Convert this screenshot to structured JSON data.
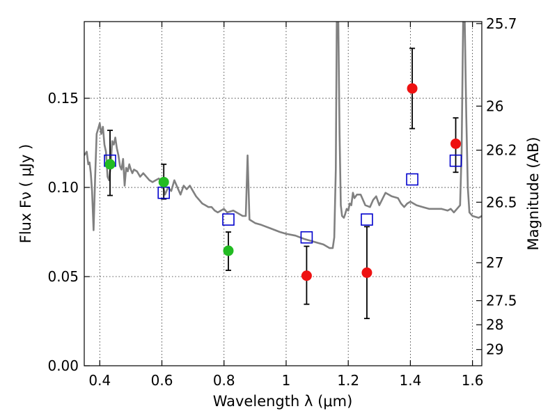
{
  "chart_data": {
    "type": "scatter",
    "title": "",
    "xlabel": "Wavelength  λ (μm)",
    "ylabel": "Flux  Fν ( μJy )",
    "ylabel_right": "Magnitude (AB)",
    "xlim": [
      0.35,
      1.63
    ],
    "ylim": [
      0.0,
      0.193
    ],
    "x_ticks": [
      {
        "value": 0.4,
        "label": "0.4"
      },
      {
        "value": 0.6,
        "label": "0.6"
      },
      {
        "value": 0.8,
        "label": "0.8"
      },
      {
        "value": 1.0,
        "label": "1"
      },
      {
        "value": 1.2,
        "label": "1.2"
      },
      {
        "value": 1.4,
        "label": "1.4"
      },
      {
        "value": 1.6,
        "label": "1.6"
      }
    ],
    "y_ticks": [
      {
        "value": 0.0,
        "label": "0.00"
      },
      {
        "value": 0.05,
        "label": "0.05"
      },
      {
        "value": 0.1,
        "label": "0.10"
      },
      {
        "value": 0.15,
        "label": "0.15"
      }
    ],
    "right_ticks": [
      {
        "flux": 0.1919,
        "label": "25.7"
      },
      {
        "flux": 0.1456,
        "label": "26"
      },
      {
        "flux": 0.1209,
        "label": "26.2"
      },
      {
        "flux": 0.0917,
        "label": "26.5"
      },
      {
        "flux": 0.0578,
        "label": "27"
      },
      {
        "flux": 0.0365,
        "label": "27.5"
      },
      {
        "flux": 0.023,
        "label": "28"
      },
      {
        "flux": 0.0091,
        "label": "29"
      }
    ],
    "grid": true,
    "colors": {
      "sed": "#808080",
      "green": "#22bb22",
      "red": "#ee1111",
      "model": "#0000cc",
      "errorbar": "#000000"
    },
    "sed_curve": [
      [
        0.35,
        0.118
      ],
      [
        0.358,
        0.12
      ],
      [
        0.363,
        0.113
      ],
      [
        0.367,
        0.114
      ],
      [
        0.371,
        0.108
      ],
      [
        0.375,
        0.098
      ],
      [
        0.38,
        0.076
      ],
      [
        0.385,
        0.105
      ],
      [
        0.39,
        0.13
      ],
      [
        0.395,
        0.133
      ],
      [
        0.4,
        0.136
      ],
      [
        0.405,
        0.13
      ],
      [
        0.41,
        0.134
      ],
      [
        0.415,
        0.124
      ],
      [
        0.42,
        0.12
      ],
      [
        0.425,
        0.106
      ],
      [
        0.43,
        0.104
      ],
      [
        0.435,
        0.112
      ],
      [
        0.44,
        0.126
      ],
      [
        0.445,
        0.124
      ],
      [
        0.45,
        0.128
      ],
      [
        0.455,
        0.122
      ],
      [
        0.46,
        0.118
      ],
      [
        0.465,
        0.112
      ],
      [
        0.47,
        0.11
      ],
      [
        0.475,
        0.116
      ],
      [
        0.48,
        0.101
      ],
      [
        0.485,
        0.111
      ],
      [
        0.49,
        0.109
      ],
      [
        0.495,
        0.113
      ],
      [
        0.5,
        0.11
      ],
      [
        0.505,
        0.108
      ],
      [
        0.51,
        0.11
      ],
      [
        0.52,
        0.109
      ],
      [
        0.53,
        0.106
      ],
      [
        0.54,
        0.108
      ],
      [
        0.55,
        0.106
      ],
      [
        0.56,
        0.104
      ],
      [
        0.57,
        0.103
      ],
      [
        0.58,
        0.104
      ],
      [
        0.59,
        0.105
      ],
      [
        0.6,
        0.103
      ],
      [
        0.61,
        0.096
      ],
      [
        0.62,
        0.1
      ],
      [
        0.63,
        0.098
      ],
      [
        0.64,
        0.104
      ],
      [
        0.65,
        0.1
      ],
      [
        0.66,
        0.096
      ],
      [
        0.67,
        0.101
      ],
      [
        0.68,
        0.099
      ],
      [
        0.69,
        0.101
      ],
      [
        0.7,
        0.098
      ],
      [
        0.71,
        0.095
      ],
      [
        0.72,
        0.093
      ],
      [
        0.73,
        0.091
      ],
      [
        0.74,
        0.09
      ],
      [
        0.75,
        0.089
      ],
      [
        0.76,
        0.089
      ],
      [
        0.77,
        0.087
      ],
      [
        0.78,
        0.086
      ],
      [
        0.79,
        0.087
      ],
      [
        0.8,
        0.088
      ],
      [
        0.81,
        0.086
      ],
      [
        0.83,
        0.087
      ],
      [
        0.85,
        0.085
      ],
      [
        0.86,
        0.084
      ],
      [
        0.87,
        0.084
      ],
      [
        0.876,
        0.118
      ],
      [
        0.882,
        0.082
      ],
      [
        0.9,
        0.08
      ],
      [
        0.92,
        0.079
      ],
      [
        0.95,
        0.077
      ],
      [
        0.98,
        0.075
      ],
      [
        1.0,
        0.074
      ],
      [
        1.03,
        0.073
      ],
      [
        1.06,
        0.071
      ],
      [
        1.08,
        0.07
      ],
      [
        1.1,
        0.069
      ],
      [
        1.12,
        0.068
      ],
      [
        1.14,
        0.066
      ],
      [
        1.15,
        0.066
      ],
      [
        1.155,
        0.072
      ],
      [
        1.16,
        0.11
      ],
      [
        1.163,
        0.193
      ],
      [
        1.168,
        0.193
      ],
      [
        1.172,
        0.13
      ],
      [
        1.176,
        0.09
      ],
      [
        1.18,
        0.084
      ],
      [
        1.186,
        0.083
      ],
      [
        1.19,
        0.085
      ],
      [
        1.195,
        0.088
      ],
      [
        1.2,
        0.087
      ],
      [
        1.205,
        0.091
      ],
      [
        1.21,
        0.09
      ],
      [
        1.215,
        0.097
      ],
      [
        1.22,
        0.094
      ],
      [
        1.228,
        0.096
      ],
      [
        1.24,
        0.096
      ],
      [
        1.255,
        0.09
      ],
      [
        1.27,
        0.089
      ],
      [
        1.28,
        0.093
      ],
      [
        1.29,
        0.095
      ],
      [
        1.3,
        0.09
      ],
      [
        1.32,
        0.097
      ],
      [
        1.34,
        0.095
      ],
      [
        1.36,
        0.094
      ],
      [
        1.37,
        0.091
      ],
      [
        1.38,
        0.089
      ],
      [
        1.39,
        0.091
      ],
      [
        1.4,
        0.092
      ],
      [
        1.41,
        0.091
      ],
      [
        1.42,
        0.09
      ],
      [
        1.44,
        0.089
      ],
      [
        1.46,
        0.088
      ],
      [
        1.48,
        0.088
      ],
      [
        1.5,
        0.088
      ],
      [
        1.52,
        0.087
      ],
      [
        1.53,
        0.088
      ],
      [
        1.535,
        0.087
      ],
      [
        1.54,
        0.086
      ],
      [
        1.55,
        0.088
      ],
      [
        1.56,
        0.09
      ],
      [
        1.565,
        0.12
      ],
      [
        1.57,
        0.193
      ],
      [
        1.575,
        0.193
      ],
      [
        1.58,
        0.14
      ],
      [
        1.585,
        0.1
      ],
      [
        1.59,
        0.086
      ],
      [
        1.6,
        0.084
      ],
      [
        1.62,
        0.083
      ],
      [
        1.63,
        0.084
      ]
    ],
    "observed_green": [
      {
        "x": 0.433,
        "y": 0.113,
        "err_lo": 0.0955,
        "err_hi": 0.132
      },
      {
        "x": 0.606,
        "y": 0.103,
        "err_lo": 0.0935,
        "err_hi": 0.113
      },
      {
        "x": 0.814,
        "y": 0.0645,
        "err_lo": 0.0535,
        "err_hi": 0.075
      }
    ],
    "observed_red": [
      {
        "x": 1.066,
        "y": 0.0505,
        "err_lo": 0.0345,
        "err_hi": 0.067
      },
      {
        "x": 1.26,
        "y": 0.0522,
        "err_lo": 0.0265,
        "err_hi": 0.078
      },
      {
        "x": 1.406,
        "y": 0.1555,
        "err_lo": 0.133,
        "err_hi": 0.178
      },
      {
        "x": 1.546,
        "y": 0.1245,
        "err_lo": 0.1085,
        "err_hi": 0.139
      }
    ],
    "model_points": [
      {
        "x": 0.433,
        "y": 0.115
      },
      {
        "x": 0.606,
        "y": 0.097
      },
      {
        "x": 0.814,
        "y": 0.082
      },
      {
        "x": 1.066,
        "y": 0.072
      },
      {
        "x": 1.26,
        "y": 0.082
      },
      {
        "x": 1.406,
        "y": 0.1045
      },
      {
        "x": 1.546,
        "y": 0.115
      }
    ]
  }
}
